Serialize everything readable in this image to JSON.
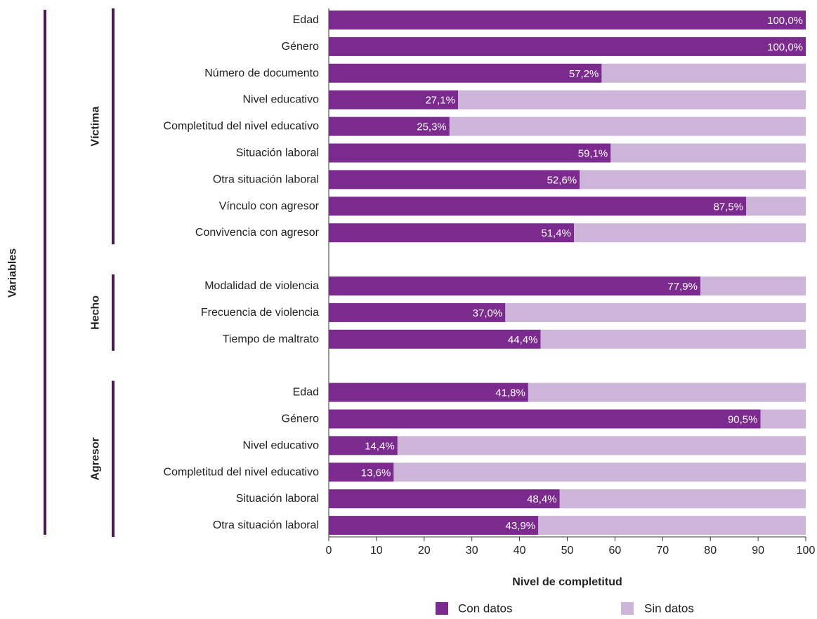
{
  "chart_data": {
    "type": "bar",
    "orientation": "horizontal",
    "stacked": true,
    "xlabel": "Nivel de completitud",
    "ylabel": "Variables",
    "xlim": [
      0,
      100
    ],
    "xticks": [
      "0",
      "10",
      "20",
      "30",
      "40",
      "50",
      "60",
      "70",
      "80",
      "90",
      "100"
    ],
    "colors": {
      "con_datos": "#7b2a8e",
      "sin_datos": "#cdb5d9",
      "group_bar": "#4b1a4f"
    },
    "legend": {
      "position": "bottom",
      "items": [
        "Con datos",
        "Sin datos"
      ]
    },
    "groups": [
      {
        "name": "Víctima",
        "categories": [
          "Edad",
          "Género",
          "Número de documento",
          "Nivel educativo",
          "Completitud del nivel educativo",
          "Situación laboral",
          "Otra situación laboral",
          "Vínculo con agresor",
          "Convivencia con agresor"
        ],
        "values": [
          100.0,
          100.0,
          57.2,
          27.1,
          25.3,
          59.1,
          52.6,
          87.5,
          51.4
        ],
        "labels": [
          "100,0%",
          "100,0%",
          "57,2%",
          "27,1%",
          "25,3%",
          "59,1%",
          "52,6%",
          "87,5%",
          "51,4%"
        ]
      },
      {
        "name": "Hecho",
        "categories": [
          "Modalidad de violencia",
          "Frecuencia de violencia",
          "Tiempo de maltrato"
        ],
        "values": [
          77.9,
          37.0,
          44.4
        ],
        "labels": [
          "77,9%",
          "37,0%",
          "44,4%"
        ]
      },
      {
        "name": "Agresor",
        "categories": [
          "Edad",
          "Género",
          "Nivel educativo",
          "Completitud del nivel educativo",
          "Situación laboral",
          "Otra situación laboral"
        ],
        "values": [
          41.8,
          90.5,
          14.4,
          13.6,
          48.4,
          43.9
        ],
        "labels": [
          "41,8%",
          "90,5%",
          "14,4%",
          "13,6%",
          "48,4%",
          "43,9%"
        ]
      }
    ]
  }
}
